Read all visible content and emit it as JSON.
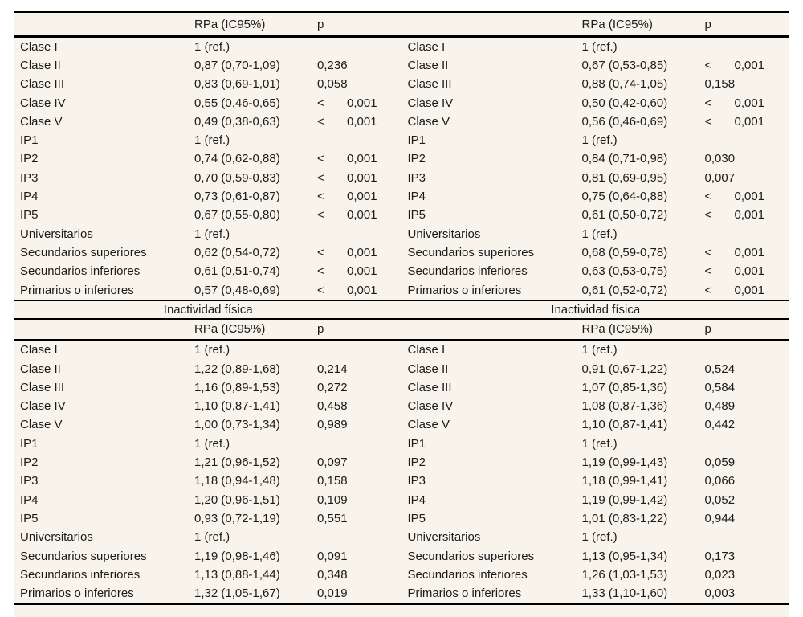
{
  "colors": {
    "page_background": "#ffffff",
    "panel_background": "#f8f4eb",
    "rule": "#000000",
    "text": "#1b1b1b"
  },
  "columns": {
    "rpa_header": "RPa (IC95%)",
    "p_header": "p"
  },
  "sections": [
    {
      "title": "",
      "halves": [
        {
          "rows": [
            {
              "label": "Clase I",
              "rpa": "1 (ref.)",
              "p": ""
            },
            {
              "label": "Clase II",
              "rpa": "0,87 (0,70-1,09)",
              "p": "0,236"
            },
            {
              "label": "Clase III",
              "rpa": "0,83 (0,69-1,01)",
              "p": "0,058"
            },
            {
              "label": "Clase IV",
              "rpa": "0,55 (0,46-0,65)",
              "p": "< 0,001"
            },
            {
              "label": "Clase V",
              "rpa": "0,49 (0,38-0,63)",
              "p": "< 0,001"
            },
            {
              "label": "IP1",
              "rpa": "1 (ref.)",
              "p": ""
            },
            {
              "label": "IP2",
              "rpa": "0,74 (0,62-0,88)",
              "p": "< 0,001"
            },
            {
              "label": "IP3",
              "rpa": "0,70 (0,59-0,83)",
              "p": "< 0,001"
            },
            {
              "label": "IP4",
              "rpa": "0,73 (0,61-0,87)",
              "p": "< 0,001"
            },
            {
              "label": "IP5",
              "rpa": "0,67 (0,55-0,80)",
              "p": "< 0,001"
            },
            {
              "label": "Universitarios",
              "rpa": "1 (ref.)",
              "p": ""
            },
            {
              "label": "Secundarios superiores",
              "rpa": "0,62 (0,54-0,72)",
              "p": "< 0,001"
            },
            {
              "label": "Secundarios inferiores",
              "rpa": "0,61 (0,51-0,74)",
              "p": "< 0,001"
            },
            {
              "label": "Primarios o inferiores",
              "rpa": "0,57 (0,48-0,69)",
              "p": "< 0,001"
            }
          ]
        },
        {
          "rows": [
            {
              "label": "Clase I",
              "rpa": "1 (ref.)",
              "p": ""
            },
            {
              "label": "Clase II",
              "rpa": "0,67 (0,53-0,85)",
              "p": "< 0,001"
            },
            {
              "label": "Clase III",
              "rpa": "0,88 (0,74-1,05)",
              "p": "0,158"
            },
            {
              "label": "Clase IV",
              "rpa": "0,50 (0,42-0,60)",
              "p": "< 0,001"
            },
            {
              "label": "Clase V",
              "rpa": "0,56 (0,46-0,69)",
              "p": "< 0,001"
            },
            {
              "label": "IP1",
              "rpa": "1 (ref.)",
              "p": ""
            },
            {
              "label": "IP2",
              "rpa": "0,84 (0,71-0,98)",
              "p": "0,030"
            },
            {
              "label": "IP3",
              "rpa": "0,81 (0,69-0,95)",
              "p": "0,007"
            },
            {
              "label": "IP4",
              "rpa": "0,75 (0,64-0,88)",
              "p": "< 0,001"
            },
            {
              "label": "IP5",
              "rpa": "0,61 (0,50-0,72)",
              "p": "< 0,001"
            },
            {
              "label": "Universitarios",
              "rpa": "1 (ref.)",
              "p": ""
            },
            {
              "label": "Secundarios superiores",
              "rpa": "0,68 (0,59-0,78)",
              "p": "< 0,001"
            },
            {
              "label": "Secundarios inferiores",
              "rpa": "0,63 (0,53-0,75)",
              "p": "< 0,001"
            },
            {
              "label": "Primarios o inferiores",
              "rpa": "0,61 (0,52-0,72)",
              "p": "< 0,001"
            }
          ]
        }
      ]
    },
    {
      "title": "Inactividad física",
      "halves": [
        {
          "rows": [
            {
              "label": "Clase I",
              "rpa": "1 (ref.)",
              "p": ""
            },
            {
              "label": "Clase II",
              "rpa": "1,22 (0,89-1,68)",
              "p": "0,214"
            },
            {
              "label": "Clase III",
              "rpa": "1,16 (0,89-1,53)",
              "p": "0,272"
            },
            {
              "label": "Clase IV",
              "rpa": "1,10 (0,87-1,41)",
              "p": "0,458"
            },
            {
              "label": "Clase V",
              "rpa": "1,00 (0,73-1,34)",
              "p": "0,989"
            },
            {
              "label": "IP1",
              "rpa": "1 (ref.)",
              "p": ""
            },
            {
              "label": "IP2",
              "rpa": "1,21 (0,96-1,52)",
              "p": "0,097"
            },
            {
              "label": "IP3",
              "rpa": "1,18 (0,94-1,48)",
              "p": "0,158"
            },
            {
              "label": "IP4",
              "rpa": "1,20 (0,96-1,51)",
              "p": "0,109"
            },
            {
              "label": "IP5",
              "rpa": "0,93 (0,72-1,19)",
              "p": "0,551"
            },
            {
              "label": "Universitarios",
              "rpa": "1 (ref.)",
              "p": ""
            },
            {
              "label": "Secundarios superiores",
              "rpa": "1,19 (0,98-1,46)",
              "p": "0,091"
            },
            {
              "label": "Secundarios inferiores",
              "rpa": "1,13 (0,88-1,44)",
              "p": "0,348"
            },
            {
              "label": "Primarios o inferiores",
              "rpa": "1,32 (1,05-1,67)",
              "p": "0,019"
            }
          ]
        },
        {
          "rows": [
            {
              "label": "Clase I",
              "rpa": "1 (ref.)",
              "p": ""
            },
            {
              "label": "Clase II",
              "rpa": "0,91 (0,67-1,22)",
              "p": "0,524"
            },
            {
              "label": "Clase III",
              "rpa": "1,07 (0,85-1,36)",
              "p": "0,584"
            },
            {
              "label": "Clase IV",
              "rpa": "1,08 (0,87-1,36)",
              "p": "0,489"
            },
            {
              "label": "Clase V",
              "rpa": "1,10 (0,87-1,41)",
              "p": "0,442"
            },
            {
              "label": "IP1",
              "rpa": "1 (ref.)",
              "p": ""
            },
            {
              "label": "IP2",
              "rpa": "1,19 (0,99-1,43)",
              "p": "0,059"
            },
            {
              "label": "IP3",
              "rpa": "1,18 (0,99-1,41)",
              "p": "0,066"
            },
            {
              "label": "IP4",
              "rpa": "1,19 (0,99-1,42)",
              "p": "0,052"
            },
            {
              "label": "IP5",
              "rpa": "1,01 (0,83-1,22)",
              "p": "0,944"
            },
            {
              "label": "Universitarios",
              "rpa": "1 (ref.)",
              "p": ""
            },
            {
              "label": "Secundarios superiores",
              "rpa": "1,13 (0,95-1,34)",
              "p": "0,173"
            },
            {
              "label": "Secundarios inferiores",
              "rpa": "1,26 (1,03-1,53)",
              "p": "0,023"
            },
            {
              "label": "Primarios o inferiores",
              "rpa": "1,33 (1,10-1,60)",
              "p": "0,003"
            }
          ]
        }
      ]
    }
  ]
}
